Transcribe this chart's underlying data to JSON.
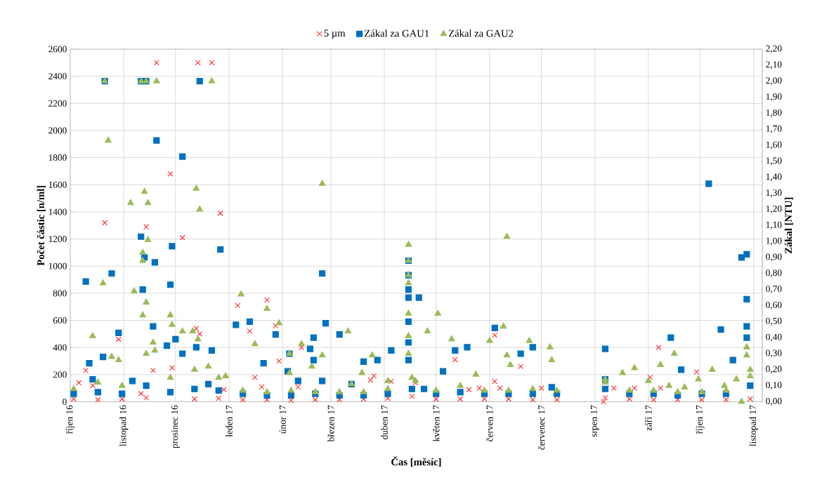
{
  "chart_data": {
    "type": "scatter",
    "xlabel": "Čas [měsíc]",
    "ylabel": "Počet částic [n/ml]",
    "y2label": "Zákal [NTU]",
    "xlim": [
      "2016-10-01",
      "2017-11-06"
    ],
    "xticks": [
      {
        "value": "2016-10-01",
        "label": "říjen 16"
      },
      {
        "value": "2016-11-01",
        "label": "listopad 16"
      },
      {
        "value": "2016-12-01",
        "label": "prosinec 16"
      },
      {
        "value": "2017-01-01",
        "label": "leden 17"
      },
      {
        "value": "2017-02-01",
        "label": "únor 17"
      },
      {
        "value": "2017-03-01",
        "label": "březen 17"
      },
      {
        "value": "2017-04-01",
        "label": "duben 17"
      },
      {
        "value": "2017-05-01",
        "label": "květen 17"
      },
      {
        "value": "2017-06-01",
        "label": "červen 17"
      },
      {
        "value": "2017-07-01",
        "label": "červenec 17"
      },
      {
        "value": "2017-08-01",
        "label": "srpen 17"
      },
      {
        "value": "2017-09-01",
        "label": "září 17"
      },
      {
        "value": "2017-10-01",
        "label": "říjen 17"
      },
      {
        "value": "2017-11-01",
        "label": "listopad 17"
      }
    ],
    "ylim": [
      0,
      2600
    ],
    "yticks": [
      0,
      200,
      400,
      600,
      800,
      1000,
      1200,
      1400,
      1600,
      1800,
      2000,
      2200,
      2400,
      2600
    ],
    "y2lim": [
      0,
      2.2
    ],
    "y2ticks": [
      {
        "value": 0,
        "label": "0,00"
      },
      {
        "value": 0.1,
        "label": "0,10"
      },
      {
        "value": 0.2,
        "label": "0,20"
      },
      {
        "value": 0.3,
        "label": "0,30"
      },
      {
        "value": 0.4,
        "label": "0,40"
      },
      {
        "value": 0.5,
        "label": "0,50"
      },
      {
        "value": 0.6,
        "label": "0,60"
      },
      {
        "value": 0.7,
        "label": "0,70"
      },
      {
        "value": 0.8,
        "label": "0,80"
      },
      {
        "value": 0.9,
        "label": "0,90"
      },
      {
        "value": 1.0,
        "label": "1,00"
      },
      {
        "value": 1.1,
        "label": "1,10"
      },
      {
        "value": 1.2,
        "label": "1,20"
      },
      {
        "value": 1.3,
        "label": "1,30"
      },
      {
        "value": 1.4,
        "label": "1,40"
      },
      {
        "value": 1.5,
        "label": "1,50"
      },
      {
        "value": 1.6,
        "label": "1,60"
      },
      {
        "value": 1.7,
        "label": "1,70"
      },
      {
        "value": 1.8,
        "label": "1,80"
      },
      {
        "value": 1.9,
        "label": "1,90"
      },
      {
        "value": 2.0,
        "label": "2,00"
      },
      {
        "value": 2.1,
        "label": "2,10"
      },
      {
        "value": 2.2,
        "label": "2,20"
      }
    ],
    "grid": true,
    "legend": "top",
    "series": [
      {
        "name": "5 µm",
        "color": "#ff3b3b",
        "marker": "cross",
        "x": [
          "2016-10-06",
          "2016-10-10",
          "2016-10-14",
          "2016-10-21",
          "2016-10-29",
          "2016-11-14",
          "2016-11-18",
          "2016-11-20",
          "2016-11-28",
          "2016-11-29",
          "2016-12-05",
          "2016-12-13",
          "2016-12-14",
          "2016-12-15",
          "2016-12-22",
          "2016-12-27",
          "2016-12-29",
          "2017-01-06",
          "2017-01-13",
          "2017-01-16",
          "2017-01-20",
          "2017-01-23",
          "2017-01-28",
          "2017-01-30",
          "2017-02-10",
          "2017-02-12",
          "2017-03-24",
          "2017-03-26",
          "2017-04-05",
          "2017-04-19",
          "2017-05-12",
          "2017-05-20",
          "2017-05-26",
          "2017-06-04",
          "2017-06-04",
          "2017-06-07",
          "2017-06-19",
          "2017-07-01",
          "2017-08-06",
          "2017-08-12",
          "2017-08-24",
          "2017-09-02",
          "2017-09-07",
          "2017-09-08",
          "2017-09-29",
          "2016-10-03",
          "2016-10-17",
          "2016-10-31",
          "2016-11-14",
          "2016-11-11",
          "2016-12-12",
          "2016-12-26",
          "2017-01-09",
          "2017-01-23",
          "2017-02-06",
          "2017-02-20",
          "2017-03-06",
          "2017-03-20",
          "2017-04-03",
          "2017-04-17",
          "2017-05-01",
          "2017-05-15",
          "2017-05-29",
          "2017-06-12",
          "2017-06-26",
          "2017-07-10",
          "2017-08-07",
          "2017-08-21",
          "2017-09-04",
          "2017-09-18",
          "2017-10-02",
          "2017-10-16",
          "2017-10-30"
        ],
        "values": [
          140,
          230,
          120,
          1320,
          460,
          1290,
          230,
          2500,
          1680,
          250,
          1210,
          540,
          2500,
          500,
          2500,
          1390,
          90,
          710,
          520,
          180,
          110,
          750,
          560,
          300,
          110,
          400,
          160,
          190,
          150,
          140,
          310,
          90,
          100,
          490,
          150,
          100,
          260,
          100,
          0,
          100,
          100,
          180,
          400,
          100,
          220,
          20,
          15,
          20,
          30,
          60,
          20,
          25,
          15,
          15,
          10,
          15,
          15,
          20,
          25,
          40,
          20,
          20,
          20,
          20,
          15,
          15,
          30,
          20,
          15,
          15,
          15,
          15,
          20
        ]
      },
      {
        "name": "Zákal za GAU1",
        "color": "#0070c0",
        "marker": "square",
        "axis": "y2",
        "x": [
          "2016-10-10",
          "2016-10-12",
          "2016-10-14",
          "2016-10-20",
          "2016-10-21",
          "2016-10-25",
          "2016-10-29",
          "2016-11-06",
          "2016-11-11",
          "2016-11-11",
          "2016-11-12",
          "2016-11-13",
          "2016-11-14",
          "2016-11-18",
          "2016-11-19",
          "2016-11-20",
          "2016-11-26",
          "2016-11-28",
          "2016-11-29",
          "2016-12-01",
          "2016-12-05",
          "2016-12-05",
          "2016-12-13",
          "2016-12-15",
          "2016-12-20",
          "2016-12-22",
          "2016-12-27",
          "2017-01-05",
          "2017-01-13",
          "2017-01-21",
          "2017-01-28",
          "2017-02-04",
          "2017-02-05",
          "2017-02-10",
          "2017-02-17",
          "2017-02-19",
          "2017-02-19",
          "2017-02-24",
          "2017-02-24",
          "2017-02-26",
          "2017-03-06",
          "2017-03-13",
          "2017-03-20",
          "2017-03-28",
          "2017-04-05",
          "2017-04-15",
          "2017-04-15",
          "2017-04-15",
          "2017-04-15",
          "2017-04-15",
          "2017-04-15",
          "2017-04-15",
          "2017-04-21",
          "2017-04-24",
          "2017-05-05",
          "2017-05-12",
          "2017-05-19",
          "2017-06-04",
          "2017-06-19",
          "2017-06-26",
          "2017-07-07",
          "2017-08-07",
          "2017-08-07",
          "2017-09-14",
          "2017-09-20",
          "2017-10-06",
          "2017-10-13",
          "2017-10-20",
          "2017-10-25",
          "2017-10-28",
          "2017-10-28",
          "2017-10-28",
          "2017-10-28",
          "2016-10-03",
          "2016-10-17",
          "2016-10-31",
          "2016-11-14",
          "2016-11-28",
          "2016-12-12",
          "2016-12-26",
          "2017-01-09",
          "2017-01-23",
          "2017-02-06",
          "2017-02-20",
          "2017-03-06",
          "2017-03-20",
          "2017-04-03",
          "2017-04-17",
          "2017-05-01",
          "2017-05-15",
          "2017-05-29",
          "2017-06-12",
          "2017-06-26",
          "2017-07-10",
          "2017-08-07",
          "2017-08-21",
          "2017-09-04",
          "2017-09-18",
          "2017-10-02",
          "2017-10-16",
          "2017-10-30"
        ],
        "values": [
          0.75,
          0.24,
          0.14,
          0.28,
          2.0,
          0.8,
          0.43,
          0.13,
          2.0,
          1.03,
          0.7,
          0.9,
          2.0,
          0.47,
          0.87,
          1.63,
          0.35,
          0.73,
          0.97,
          0.39,
          1.53,
          0.3,
          0.34,
          2.0,
          0.11,
          0.32,
          0.95,
          0.48,
          0.5,
          0.24,
          0.42,
          0.19,
          0.3,
          0.13,
          0.33,
          0.4,
          0.26,
          0.8,
          0.13,
          0.49,
          0.42,
          0.11,
          0.25,
          0.26,
          0.32,
          0.88,
          0.79,
          0.7,
          0.65,
          0.5,
          0.37,
          0.26,
          0.65,
          0.08,
          0.19,
          0.32,
          0.34,
          0.46,
          0.3,
          0.34,
          0.09,
          0.33,
          0.14,
          0.4,
          0.2,
          1.36,
          0.45,
          0.26,
          0.9,
          0.92,
          0.64,
          0.47,
          0.4,
          0.05,
          0.06,
          0.05,
          0.1,
          0.06,
          0.08,
          0.07,
          0.05,
          0.04,
          0.04,
          0.05,
          0.04,
          0.04,
          0.05,
          0.08,
          0.05,
          0.06,
          0.05,
          0.05,
          0.05,
          0.05,
          0.08,
          0.05,
          0.05,
          0.04,
          0.05,
          0.05,
          0.1
        ]
      },
      {
        "name": "Zákal za GAU2",
        "color": "#9bbb59",
        "marker": "triangle",
        "axis": "y2",
        "x": [
          "2016-10-14",
          "2016-10-20",
          "2016-10-21",
          "2016-10-23",
          "2016-10-25",
          "2016-10-29",
          "2016-11-05",
          "2016-11-07",
          "2016-11-11",
          "2016-11-12",
          "2016-11-12",
          "2016-11-12",
          "2016-11-13",
          "2016-11-14",
          "2016-11-14",
          "2016-11-15",
          "2016-11-15",
          "2016-11-18",
          "2016-11-19",
          "2016-11-20",
          "2016-11-28",
          "2016-11-29",
          "2016-12-05",
          "2016-12-11",
          "2016-12-13",
          "2016-12-14",
          "2016-12-15",
          "2016-12-20",
          "2016-12-22",
          "2016-12-30",
          "2017-01-08",
          "2017-01-16",
          "2017-01-23",
          "2017-01-30",
          "2017-02-05",
          "2017-02-05",
          "2017-02-12",
          "2017-02-18",
          "2017-02-24",
          "2017-02-24",
          "2017-03-11",
          "2017-03-13",
          "2017-03-19",
          "2017-03-25",
          "2017-04-03",
          "2017-04-15",
          "2017-04-15",
          "2017-04-15",
          "2017-04-15",
          "2017-04-15",
          "2017-04-15",
          "2017-04-15",
          "2017-04-19",
          "2017-04-26",
          "2017-05-02",
          "2017-05-10",
          "2017-05-24",
          "2017-06-01",
          "2017-06-09",
          "2017-06-11",
          "2017-06-11",
          "2017-06-13",
          "2017-06-24",
          "2017-07-06",
          "2017-07-07",
          "2017-08-07",
          "2017-08-17",
          "2017-08-24",
          "2017-09-01",
          "2017-09-08",
          "2017-09-13",
          "2017-09-16",
          "2017-09-22",
          "2017-09-30",
          "2017-10-08",
          "2017-10-15",
          "2017-10-22",
          "2017-10-25",
          "2017-10-28",
          "2017-10-28",
          "2017-10-30",
          "2016-10-03",
          "2016-10-17",
          "2016-10-31",
          "2016-11-14",
          "2016-11-28",
          "2016-12-12",
          "2016-12-26",
          "2017-01-09",
          "2017-01-23",
          "2017-02-06",
          "2017-02-20",
          "2017-03-06",
          "2017-03-20",
          "2017-04-03",
          "2017-04-17",
          "2017-05-01",
          "2017-05-15",
          "2017-05-29",
          "2017-06-12",
          "2017-06-26",
          "2017-07-10",
          "2017-08-07",
          "2017-08-21",
          "2017-09-04",
          "2017-09-18",
          "2017-10-02",
          "2017-10-16",
          "2017-10-30"
        ],
        "values": [
          0.41,
          0.74,
          2.0,
          1.63,
          0.28,
          0.26,
          1.24,
          0.69,
          2.0,
          0.93,
          0.88,
          0.54,
          1.31,
          2.0,
          0.62,
          1.24,
          1.01,
          0.37,
          0.32,
          2.0,
          0.54,
          0.48,
          0.44,
          0.44,
          1.33,
          0.39,
          1.2,
          0.22,
          2.0,
          0.16,
          0.67,
          0.36,
          0.58,
          0.49,
          0.3,
          0.18,
          0.36,
          0.22,
          1.36,
          0.29,
          0.44,
          0.11,
          0.18,
          0.29,
          0.13,
          0.98,
          0.88,
          0.79,
          0.74,
          0.55,
          0.41,
          0.3,
          0.13,
          0.44,
          0.55,
          0.39,
          0.17,
          0.38,
          0.47,
          1.03,
          0.29,
          0.23,
          0.38,
          0.34,
          0.26,
          0.14,
          0.18,
          0.21,
          0.13,
          0.23,
          0.1,
          0.3,
          0.09,
          0.14,
          0.2,
          0.1,
          0.14,
          0.0,
          0.34,
          0.29,
          0.16,
          0.08,
          0.12,
          0.1,
          0.3,
          0.15,
          0.2,
          0.15,
          0.07,
          0.06,
          0.07,
          0.06,
          0.06,
          0.06,
          0.08,
          0.15,
          0.07,
          0.1,
          0.07,
          0.07,
          0.08,
          0.07,
          0.12,
          0.07,
          0.07,
          0.06,
          0.06,
          0.07,
          0.2
        ]
      }
    ]
  }
}
